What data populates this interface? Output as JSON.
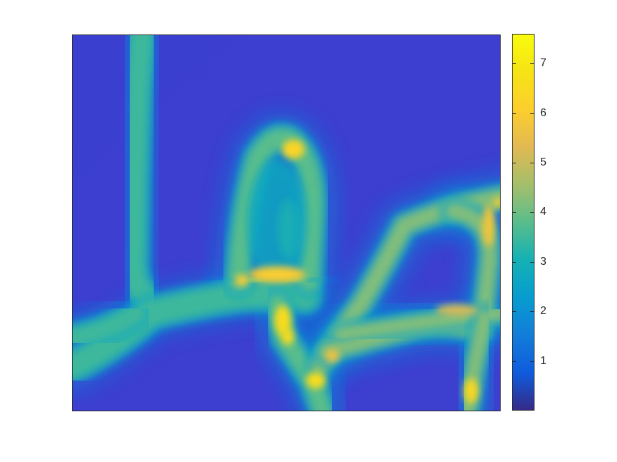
{
  "chart_data": {
    "type": "heatmap",
    "title": "",
    "xlabel": "",
    "ylabel": "",
    "colormap": "parula",
    "colorbar": {
      "range": [
        0,
        7.6
      ],
      "ticks": [
        1,
        2,
        3,
        4,
        5,
        6,
        7
      ],
      "tick_labels": [
        "1",
        "2",
        "3",
        "4",
        "5",
        "6",
        "7"
      ],
      "position": "right"
    },
    "axes_visible": false,
    "background_value": 0.3,
    "features": [
      {
        "name": "vertical-branch-left",
        "value": 3.5
      },
      {
        "name": "bird-body-outline",
        "value": 3.8
      },
      {
        "name": "bird-head",
        "value": 6.3
      },
      {
        "name": "bird-feet-band",
        "value": 6.0
      },
      {
        "name": "lower-branch-hotspots",
        "value": 6.6
      },
      {
        "name": "right-branch-loop",
        "value": 4.2
      },
      {
        "name": "right-branch-bottom-hotspot",
        "value": 6.4
      }
    ]
  }
}
